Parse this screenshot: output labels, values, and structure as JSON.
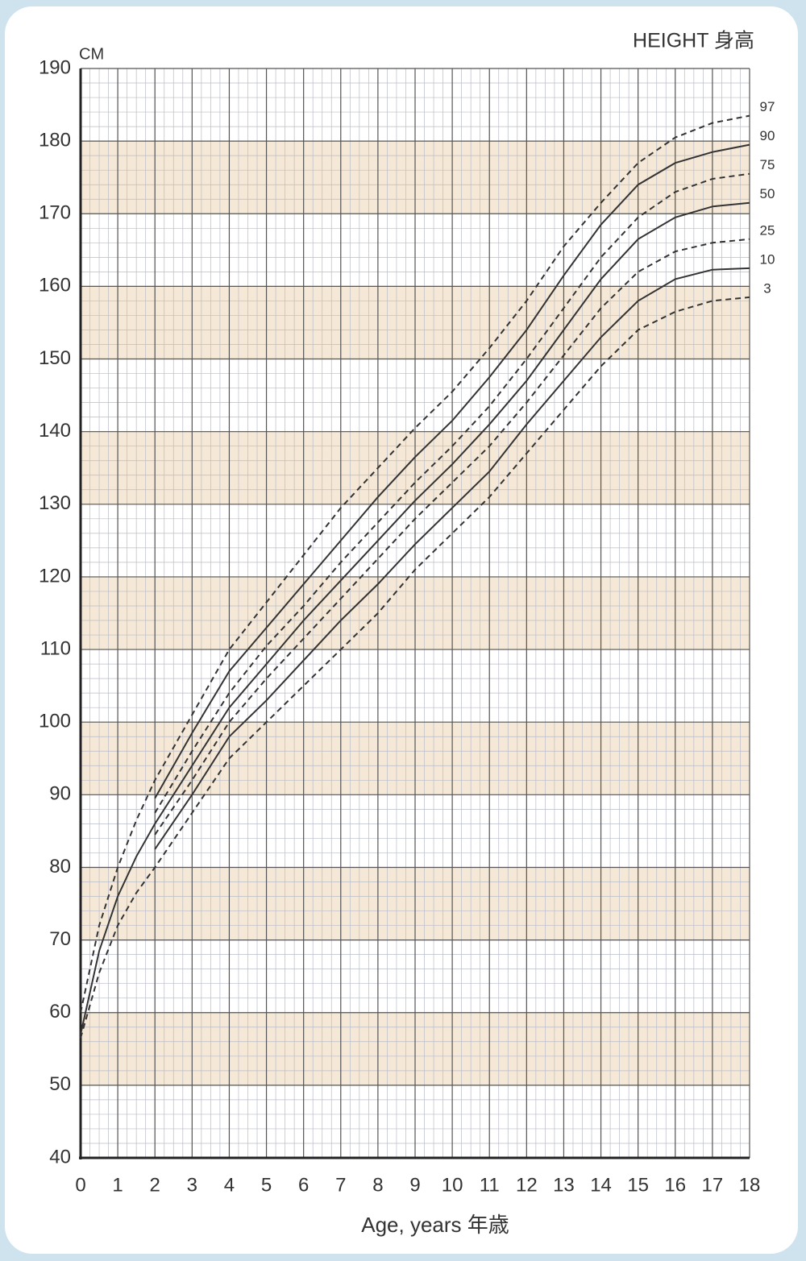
{
  "chart_data": {
    "type": "line",
    "title": "HEIGHT 身高",
    "y_unit": "CM",
    "x_label": "Age, years 年歳",
    "x": [
      0,
      0.5,
      1,
      1.5,
      2,
      3,
      4,
      5,
      6,
      7,
      8,
      9,
      10,
      11,
      12,
      13,
      14,
      15,
      16,
      17,
      18
    ],
    "series": [
      {
        "name": "97",
        "color": "#333333",
        "dashed": true,
        "values": [
          60,
          72,
          80,
          86.5,
          92,
          101,
          110,
          116.5,
          123,
          129.5,
          135,
          140.5,
          145.5,
          151.5,
          158,
          165.5,
          171.5,
          177,
          180.5,
          182.5,
          183.5
        ]
      },
      {
        "name": "90",
        "color": "#333333",
        "dashed": false,
        "values": [
          null,
          null,
          null,
          null,
          89.5,
          98.5,
          107,
          113,
          119,
          125,
          131,
          136.5,
          141.5,
          147.5,
          154,
          161.5,
          168.5,
          174,
          177,
          178.5,
          179.5
        ]
      },
      {
        "name": "75",
        "color": "#333333",
        "dashed": true,
        "values": [
          null,
          null,
          null,
          null,
          87.5,
          96,
          104,
          110.5,
          116,
          122,
          127.5,
          133,
          138,
          143.5,
          150,
          157,
          164,
          169.5,
          173,
          174.8,
          175.5
        ]
      },
      {
        "name": "50",
        "color": "#333333",
        "dashed": false,
        "values": [
          57,
          68.5,
          76,
          81.5,
          86,
          94,
          102,
          108,
          114,
          119.5,
          125,
          130.5,
          135.5,
          141,
          147,
          154,
          161,
          166.5,
          169.5,
          171,
          171.5
        ]
      },
      {
        "name": "25",
        "color": "#333333",
        "dashed": true,
        "values": [
          null,
          null,
          null,
          null,
          84.5,
          92,
          100,
          106,
          111.5,
          117,
          122.5,
          128,
          133,
          138,
          144,
          150.5,
          157,
          162,
          164.8,
          166,
          166.5
        ]
      },
      {
        "name": "10",
        "color": "#333333",
        "dashed": false,
        "values": [
          null,
          null,
          null,
          null,
          82.5,
          90,
          98,
          103,
          108.5,
          114,
          119,
          124.5,
          129.5,
          134.5,
          141,
          147,
          153,
          158,
          161,
          162.3,
          162.5
        ]
      },
      {
        "name": "3",
        "color": "#333333",
        "dashed": true,
        "values": [
          56.5,
          65.5,
          72,
          76.5,
          80,
          87.5,
          95,
          100,
          105,
          110,
          115,
          121,
          126,
          131,
          137,
          143,
          149,
          154,
          156.5,
          158,
          158.5
        ]
      }
    ],
    "xlim": [
      0,
      18
    ],
    "ylim": [
      40,
      190
    ],
    "xticks": [
      0,
      1,
      2,
      3,
      4,
      5,
      6,
      7,
      8,
      9,
      10,
      11,
      12,
      13,
      14,
      15,
      16,
      17,
      18
    ],
    "yticks": [
      40,
      50,
      60,
      70,
      80,
      90,
      100,
      110,
      120,
      130,
      140,
      150,
      160,
      170,
      180,
      190
    ],
    "grid": true,
    "minor_grid": {
      "x_step": 0.25,
      "y_step": 2
    },
    "band_color": "#f5e8d6"
  }
}
